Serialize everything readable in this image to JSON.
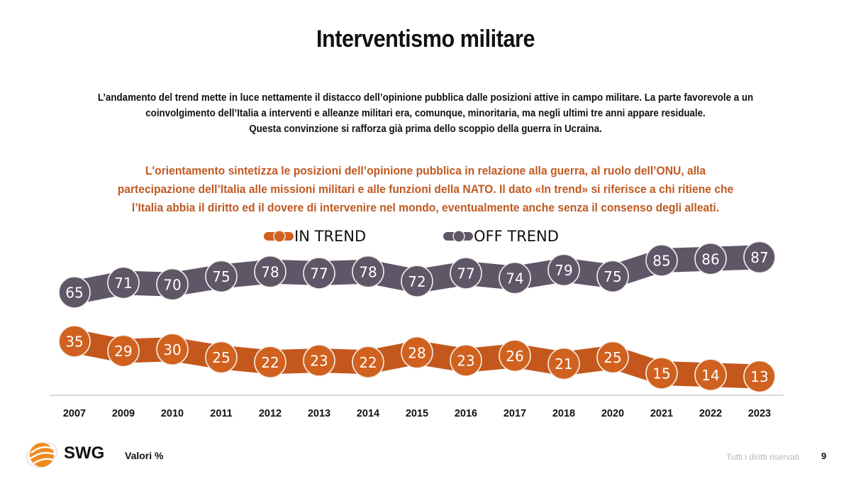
{
  "header": {
    "title": "Interventismo militare",
    "intro_lines": [
      "L’andamento del trend mette in luce nettamente il distacco dell’opinione pubblica dalle posizioni attive in campo militare. La parte favorevole a un",
      "coinvolgimento dell’Italia a interventi e alleanze militari era, comunque, minoritaria, ma negli ultimi tre anni appare residuale.",
      "Questa convinzione si rafforza già prima dello scoppio della guerra in Ucraina."
    ],
    "note_lines": [
      "L'orientamento sintetizza le posizioni dell’opinione pubblica in relazione alla guerra, al ruolo dell’ONU, alla",
      "partecipazione dell’Italia alle missioni militari e alle funzioni della NATO. Il dato «In trend» si riferisce a chi ritiene che",
      "l’Italia abbia il diritto ed il dovere di intervenire nel mondo, eventualmente anche senza il consenso degli alleati."
    ]
  },
  "chart_data": {
    "type": "line",
    "title": "Interventismo militare",
    "xlabel": "",
    "ylabel": "Valori %",
    "categories": [
      "2007",
      "2009",
      "2010",
      "2011",
      "2012",
      "2013",
      "2014",
      "2015",
      "2016",
      "2017",
      "2018",
      "2020",
      "2021",
      "2022",
      "2023"
    ],
    "series": [
      {
        "name": "IN TREND",
        "color": "#d0611f",
        "values": [
          35,
          29,
          30,
          25,
          22,
          23,
          22,
          28,
          23,
          26,
          21,
          25,
          15,
          14,
          13
        ]
      },
      {
        "name": "OFF TREND",
        "color": "#5f5668",
        "values": [
          65,
          71,
          70,
          75,
          78,
          77,
          78,
          72,
          77,
          74,
          79,
          75,
          85,
          86,
          87
        ]
      }
    ],
    "legend_position": "top-center",
    "grid": false,
    "data_labels": true
  },
  "footer": {
    "brand": "SWG",
    "unit_note": "Valori %",
    "rights": "Tutti i diritti riservati",
    "page_number": "9"
  },
  "colors": {
    "in_trend": "#d0611f",
    "in_trend_band": "#c4581c",
    "off_trend": "#5f5668",
    "note_text": "#c05a22",
    "logo_orange": "#f08a1e"
  }
}
